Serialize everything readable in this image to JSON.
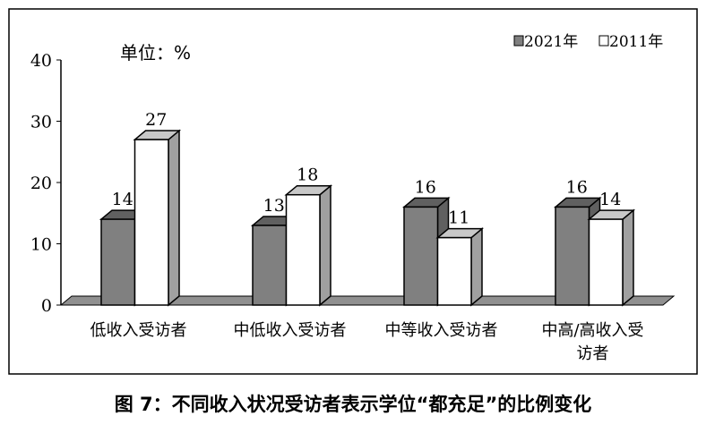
{
  "chart_data": {
    "type": "bar",
    "style": "3d-column",
    "unit_label": "单位：%",
    "categories": [
      "低收入受访者",
      "中低收入受访者",
      "中等收入受访者",
      "中高/高收入受访者"
    ],
    "series": [
      {
        "name": "2021年",
        "values": [
          14,
          13,
          16,
          16
        ],
        "color": "#808080"
      },
      {
        "name": "2011年",
        "values": [
          27,
          18,
          11,
          14
        ],
        "color": "#ffffff"
      }
    ],
    "yticks": [
      0,
      10,
      20,
      30,
      40
    ],
    "ylim": [
      0,
      40
    ],
    "grid": false,
    "legend": "top-right"
  },
  "caption": "图 7：不同收入状况受访者表示学位“都充足”的比例变化"
}
